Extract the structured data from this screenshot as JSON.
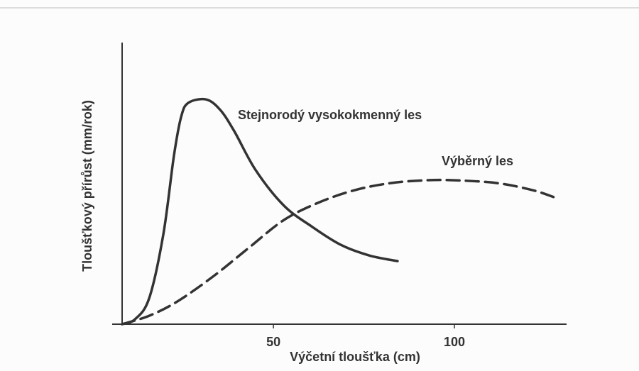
{
  "chart_data": {
    "type": "line",
    "xlabel": "Výčetní tloušťka (cm)",
    "ylabel": "Tloušťkový přírůst (mm/rok)",
    "xlim": [
      8.2,
      131
    ],
    "xticks": [
      50,
      100
    ],
    "ylim": [
      0,
      100
    ],
    "series": [
      {
        "name": "Stejnorodý vysokokmenný les",
        "color": "#333333",
        "dash": false,
        "x": [
          8.2,
          11.8,
          15.7,
          19.6,
          22.5,
          24.5,
          26.5,
          31.4,
          35.3,
          39.2,
          45.1,
          52.9,
          60.8,
          68.6,
          76.5,
          84.3
        ],
        "values": [
          0,
          1.8,
          9.3,
          32,
          59.7,
          73.6,
          78.6,
          79.8,
          76.1,
          68.5,
          54.7,
          42.1,
          34.5,
          28.2,
          24.4,
          22.4
        ]
      },
      {
        "name": "Výběrný les",
        "color": "#333333",
        "dash": true,
        "x": [
          8.2,
          15.7,
          23.5,
          33.3,
          43.1,
          52.9,
          62.7,
          72.5,
          82.4,
          92.2,
          100,
          111.8,
          121.6,
          127.5
        ],
        "values": [
          0,
          3,
          8.1,
          16.9,
          27,
          37,
          43.3,
          47.6,
          50.1,
          51.1,
          51.1,
          50.1,
          47.6,
          45.1
        ]
      }
    ]
  }
}
